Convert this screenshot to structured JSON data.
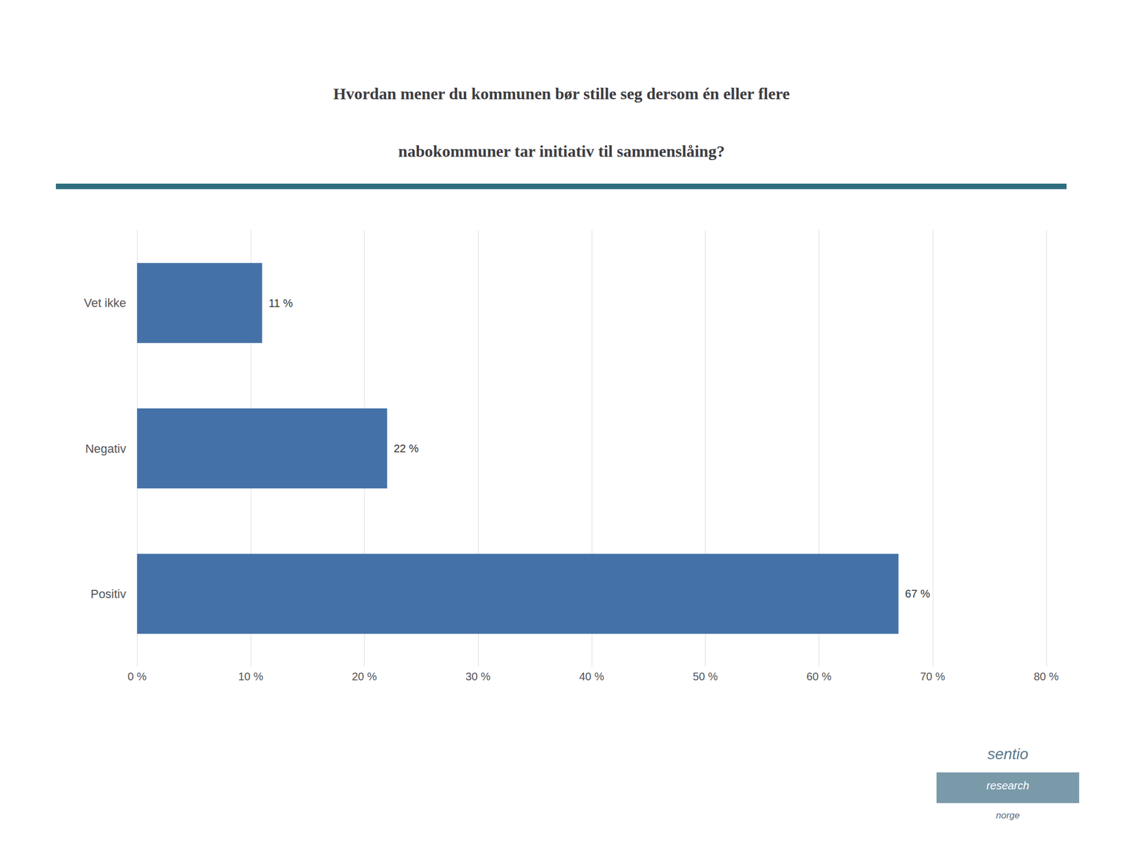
{
  "chart_data": {
    "type": "bar",
    "orientation": "horizontal",
    "title": "Hvordan mener du kommunen bør stille seg dersom én eller flere",
    "subtitle": "nabokommuner tar initiativ til sammenslåing?",
    "categories": [
      "Positiv",
      "Negativ",
      "Vet ikke"
    ],
    "values": [
      67,
      22,
      11
    ],
    "value_labels": [
      "67 %",
      "22 %",
      "11 %"
    ],
    "data_labels": true,
    "color": "#4472a8",
    "xlim": [
      0,
      80
    ],
    "xticks": [
      {
        "value": 0,
        "label": "0 %"
      },
      {
        "value": 10,
        "label": "10 %"
      },
      {
        "value": 20,
        "label": "20 %"
      },
      {
        "value": 30,
        "label": "30 %"
      },
      {
        "value": 40,
        "label": "40 %"
      },
      {
        "value": 50,
        "label": "50 %"
      },
      {
        "value": 60,
        "label": "60 %"
      },
      {
        "value": 70,
        "label": "70 %"
      },
      {
        "value": 80,
        "label": "80 %"
      }
    ],
    "grid": true,
    "annotations": [
      "sentio",
      "research",
      "norge"
    ]
  }
}
